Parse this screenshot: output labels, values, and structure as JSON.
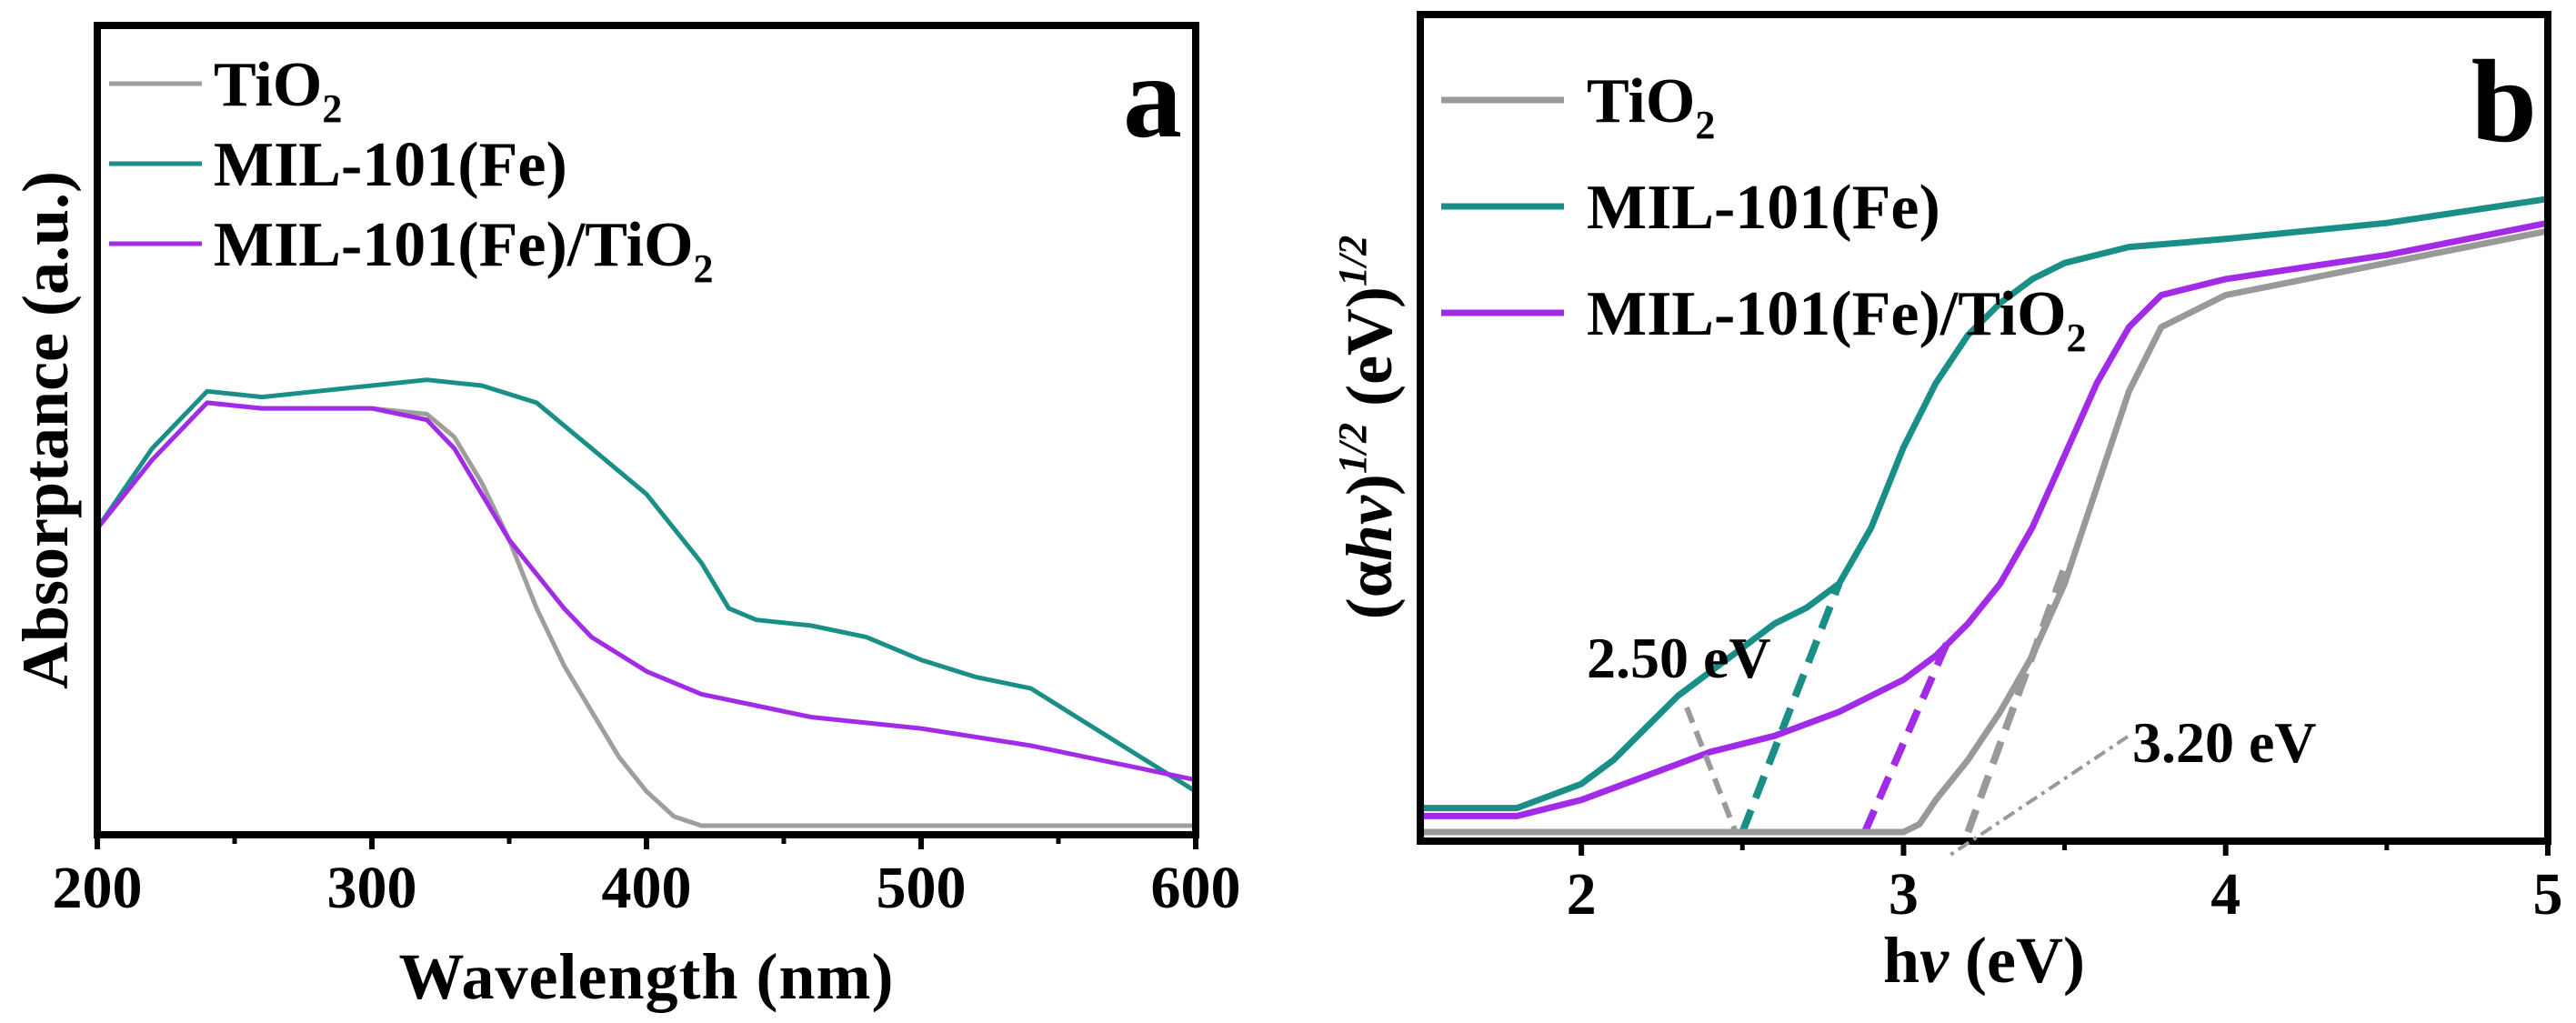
{
  "chart_data": [
    {
      "panel": "a",
      "type": "line",
      "xlabel": "Wavelength (nm)",
      "ylabel": "Absorptance (a.u.)",
      "xlim": [
        200,
        600
      ],
      "ylim": [
        0,
        1
      ],
      "xticks": [
        200,
        300,
        400,
        500,
        600
      ],
      "grid": false,
      "legend_position": "top-left",
      "colors": {
        "TiO2": "#9e9e9e",
        "MIL-101(Fe)": "#1a8f88",
        "MIL-101(Fe)/TiO2": "#a22be8"
      },
      "series": [
        {
          "name": "TiO2",
          "legend_main": "TiO",
          "legend_sub": "2",
          "x": [
            200,
            220,
            240,
            260,
            280,
            300,
            320,
            330,
            340,
            350,
            360,
            370,
            380,
            390,
            400,
            410,
            420,
            600
          ],
          "y": [
            0.26,
            0.32,
            0.37,
            0.365,
            0.365,
            0.365,
            0.36,
            0.34,
            0.3,
            0.25,
            0.19,
            0.14,
            0.1,
            0.06,
            0.03,
            0.008,
            0.0,
            0.0
          ]
        },
        {
          "name": "MIL-101(Fe)",
          "legend_main": "MIL-101(Fe)",
          "legend_sub": "",
          "x": [
            200,
            220,
            240,
            260,
            280,
            300,
            320,
            340,
            360,
            380,
            400,
            420,
            430,
            440,
            460,
            480,
            500,
            520,
            540,
            560,
            580,
            600
          ],
          "y": [
            0.26,
            0.33,
            0.38,
            0.375,
            0.38,
            0.385,
            0.39,
            0.385,
            0.37,
            0.33,
            0.29,
            0.23,
            0.19,
            0.18,
            0.175,
            0.165,
            0.145,
            0.13,
            0.12,
            0.09,
            0.06,
            0.03
          ]
        },
        {
          "name": "MIL-101(Fe)/TiO2",
          "legend_main": "MIL-101(Fe)/TiO",
          "legend_sub": "2",
          "x": [
            200,
            220,
            240,
            260,
            280,
            300,
            320,
            330,
            340,
            350,
            360,
            370,
            380,
            400,
            420,
            440,
            460,
            500,
            540,
            580,
            600
          ],
          "y": [
            0.26,
            0.32,
            0.37,
            0.365,
            0.365,
            0.365,
            0.355,
            0.33,
            0.29,
            0.25,
            0.22,
            0.19,
            0.165,
            0.135,
            0.115,
            0.105,
            0.095,
            0.085,
            0.07,
            0.05,
            0.04
          ]
        }
      ]
    },
    {
      "panel": "b",
      "type": "line",
      "xlabel_main": "h",
      "xlabel_nu": "ν",
      "xlabel_tail": " (eV)",
      "ylabel_parts": [
        "(α",
        "hν",
        ")",
        "1/2",
        " (eV)",
        "1/2"
      ],
      "xlim": [
        1.5,
        5.0
      ],
      "ylim": [
        0,
        1
      ],
      "xticks": [
        2,
        3,
        4,
        5
      ],
      "grid": false,
      "legend_position": "top-left",
      "colors": {
        "TiO2": "#999999",
        "MIL-101(Fe)": "#1a8f88",
        "MIL-101(Fe)/TiO2": "#a22be8"
      },
      "series": [
        {
          "name": "TiO2",
          "legend_main": "TiO",
          "legend_sub": "2",
          "x": [
            1.5,
            2.0,
            2.5,
            3.0,
            3.05,
            3.1,
            3.2,
            3.3,
            3.4,
            3.5,
            3.6,
            3.7,
            3.8,
            4.0,
            4.5,
            5.0
          ],
          "y": [
            0.0,
            0.0,
            0.0,
            0.0,
            0.01,
            0.04,
            0.09,
            0.15,
            0.22,
            0.31,
            0.43,
            0.55,
            0.63,
            0.67,
            0.71,
            0.75
          ]
        },
        {
          "name": "MIL-101(Fe)",
          "legend_main": "MIL-101(Fe)",
          "legend_sub": "",
          "x": [
            1.5,
            1.8,
            2.0,
            2.1,
            2.2,
            2.3,
            2.4,
            2.5,
            2.6,
            2.7,
            2.8,
            2.9,
            3.0,
            3.1,
            3.2,
            3.3,
            3.4,
            3.5,
            3.7,
            4.0,
            4.5,
            5.0
          ],
          "y": [
            0.03,
            0.03,
            0.06,
            0.09,
            0.13,
            0.17,
            0.2,
            0.23,
            0.26,
            0.28,
            0.31,
            0.38,
            0.48,
            0.56,
            0.62,
            0.66,
            0.69,
            0.71,
            0.73,
            0.74,
            0.76,
            0.79
          ]
        },
        {
          "name": "MIL-101(Fe)/TiO2",
          "legend_main": "MIL-101(Fe)/TiO",
          "legend_sub": "2",
          "x": [
            1.5,
            1.8,
            2.0,
            2.2,
            2.4,
            2.6,
            2.8,
            3.0,
            3.1,
            3.2,
            3.3,
            3.4,
            3.5,
            3.6,
            3.7,
            3.8,
            4.0,
            4.5,
            5.0
          ],
          "y": [
            0.02,
            0.02,
            0.04,
            0.07,
            0.1,
            0.12,
            0.15,
            0.19,
            0.22,
            0.26,
            0.31,
            0.38,
            0.47,
            0.56,
            0.63,
            0.67,
            0.69,
            0.72,
            0.76
          ]
        }
      ],
      "tangents": [
        {
          "name": "MIL-101(Fe)",
          "x": [
            2.5,
            2.8
          ],
          "y": [
            0.0,
            0.31
          ],
          "style": "dashed"
        },
        {
          "name": "MIL-101(Fe)/TiO2",
          "x": [
            2.88,
            3.15
          ],
          "y": [
            0.0,
            0.25
          ],
          "style": "dashed"
        },
        {
          "name": "TiO2",
          "x": [
            3.2,
            3.5
          ],
          "y": [
            0.0,
            0.33
          ],
          "style": "dashed"
        }
      ],
      "annotations": [
        {
          "text": "2.50 eV",
          "points_to": 2.5
        },
        {
          "text": "3.20 eV",
          "points_to": 3.2
        }
      ]
    }
  ],
  "panel_a_letter": "a",
  "panel_b_letter": "b"
}
